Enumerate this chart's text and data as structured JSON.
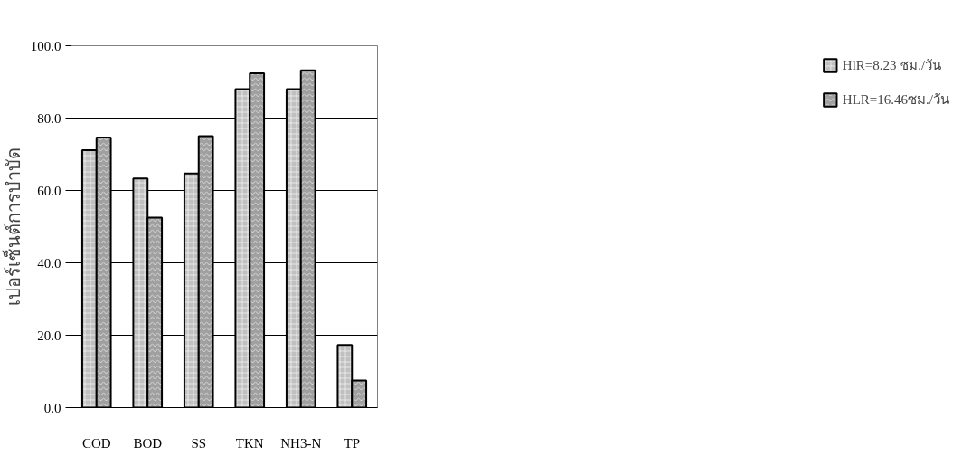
{
  "chart_data": {
    "type": "bar",
    "ylabel": "เปอร์เซ็นต์การบำบัด",
    "categories": [
      "COD",
      "BOD",
      "SS",
      "TKN",
      "NH3-N",
      "TP"
    ],
    "series": [
      {
        "name": "HlR=8.23 ซม./วัน",
        "color": "#c0c0c0",
        "values": [
          71.1,
          63.3,
          64.7,
          88.0,
          88.0,
          17.3
        ]
      },
      {
        "name": "HLR=16.46ซม./วัน",
        "color": "#a0a0a0",
        "values": [
          74.6,
          52.5,
          75.0,
          92.4,
          93.2,
          7.5
        ]
      }
    ],
    "ylim": [
      0,
      100
    ],
    "yticks": [
      {
        "value": 0,
        "label": "0.0"
      },
      {
        "value": 20,
        "label": "20.0"
      },
      {
        "value": 40,
        "label": "40.0"
      },
      {
        "value": 60,
        "label": "60.0"
      },
      {
        "value": 80,
        "label": "80.0"
      },
      {
        "value": 100,
        "label": "100.0"
      }
    ],
    "grid": "y",
    "legend": "right"
  }
}
